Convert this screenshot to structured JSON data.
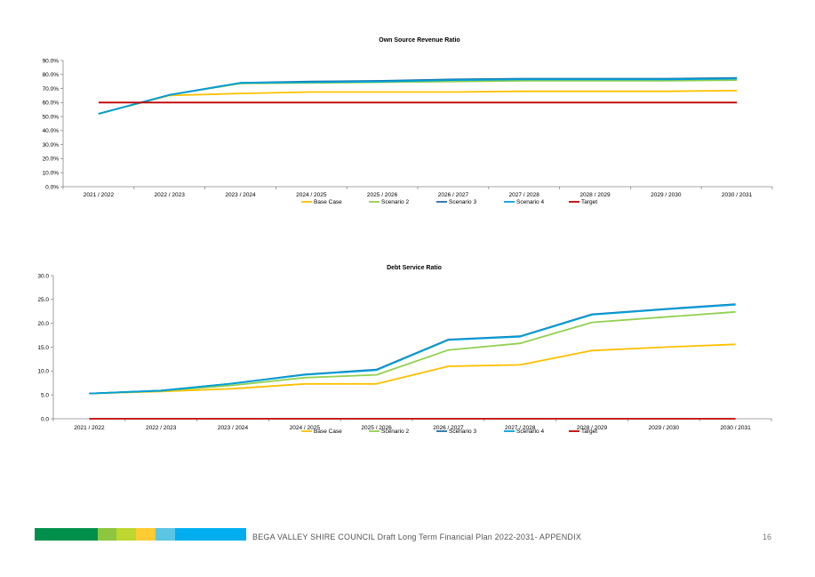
{
  "colors": {
    "base_case": "#FFC000",
    "scenario_2": "#92D050",
    "scenario_3": "#1F6FA8",
    "scenario_4": "#00A0D8",
    "target": "#C00000",
    "footer_bar": [
      "#00904C",
      "#8DC63F",
      "#BED730",
      "#FFCB32",
      "#5BC5E3",
      "#00AEEF"
    ]
  },
  "chart_data": [
    {
      "type": "line",
      "title": "Own Source Revenue Ratio",
      "categories": [
        "2021 / 2022",
        "2022 / 2023",
        "2023 / 2024",
        "2024 / 2025",
        "2025 / 2026",
        "2026 / 2027",
        "2027 / 2028",
        "2028 / 2029",
        "2029 / 2030",
        "2030 / 2031"
      ],
      "y_ticks": [
        "0.0%",
        "10.0%",
        "20.0%",
        "30.0%",
        "40.0%",
        "50.0%",
        "60.0%",
        "70.0%",
        "80.0%",
        "90.0%"
      ],
      "ylim": [
        0,
        90
      ],
      "legend_position": "bottom",
      "series": [
        {
          "name": "Base Case",
          "color_key": "base_case",
          "values": [
            52.0,
            65.0,
            66.5,
            67.5,
            67.5,
            67.5,
            68.0,
            68.0,
            68.0,
            68.5
          ]
        },
        {
          "name": "Scenario 2",
          "color_key": "scenario_2",
          "values": [
            52.0,
            65.5,
            73.5,
            74.0,
            74.5,
            75.0,
            75.5,
            75.5,
            75.5,
            76.0
          ]
        },
        {
          "name": "Scenario 3",
          "color_key": "scenario_3",
          "values": [
            52.0,
            65.5,
            74.0,
            75.0,
            75.5,
            76.5,
            77.0,
            77.0,
            77.0,
            77.5
          ]
        },
        {
          "name": "Scenario 4",
          "color_key": "scenario_4",
          "values": [
            52.0,
            65.5,
            74.0,
            74.5,
            75.0,
            76.0,
            76.5,
            76.5,
            76.5,
            77.0
          ]
        },
        {
          "name": "Target",
          "color_key": "target",
          "values": [
            60,
            60,
            60,
            60,
            60,
            60,
            60,
            60,
            60,
            60
          ]
        }
      ]
    },
    {
      "type": "line",
      "title": "Debt Service Ratio",
      "categories": [
        "2021 / 2022",
        "2022 / 2023",
        "2023 / 2024",
        "2024 / 2025",
        "2025 / 2026",
        "2026 / 2027",
        "2027 / 2028",
        "2028 / 2029",
        "2029 / 2030",
        "2030 / 2031"
      ],
      "y_ticks": [
        "0.0",
        "5.0",
        "10.0",
        "15.0",
        "20.0",
        "25.0",
        "30.0"
      ],
      "ylim": [
        0,
        30
      ],
      "legend_position": "bottom",
      "series": [
        {
          "name": "Base Case",
          "color_key": "base_case",
          "values": [
            5.3,
            5.7,
            6.3,
            7.3,
            7.3,
            11.0,
            11.3,
            14.3,
            15.0,
            15.6
          ]
        },
        {
          "name": "Scenario 2",
          "color_key": "scenario_2",
          "values": [
            5.3,
            5.8,
            7.0,
            8.6,
            9.2,
            14.4,
            15.8,
            20.2,
            21.3,
            22.4
          ]
        },
        {
          "name": "Scenario 3",
          "color_key": "scenario_3",
          "values": [
            5.3,
            5.9,
            7.4,
            9.3,
            10.3,
            16.6,
            17.3,
            21.9,
            23.0,
            24.0
          ]
        },
        {
          "name": "Scenario 4",
          "color_key": "scenario_4",
          "values": [
            5.3,
            5.9,
            7.4,
            9.2,
            10.2,
            16.5,
            17.2,
            21.8,
            22.9,
            23.9
          ]
        },
        {
          "name": "Target",
          "color_key": "target",
          "values": [
            0,
            0,
            0,
            0,
            0,
            0,
            0,
            0,
            0,
            0
          ]
        }
      ]
    }
  ],
  "footer": {
    "text": "BEGA VALLEY SHIRE COUNCIL  Draft Long Term Financial Plan 2022-2031- APPENDIX",
    "page_number": "16"
  }
}
